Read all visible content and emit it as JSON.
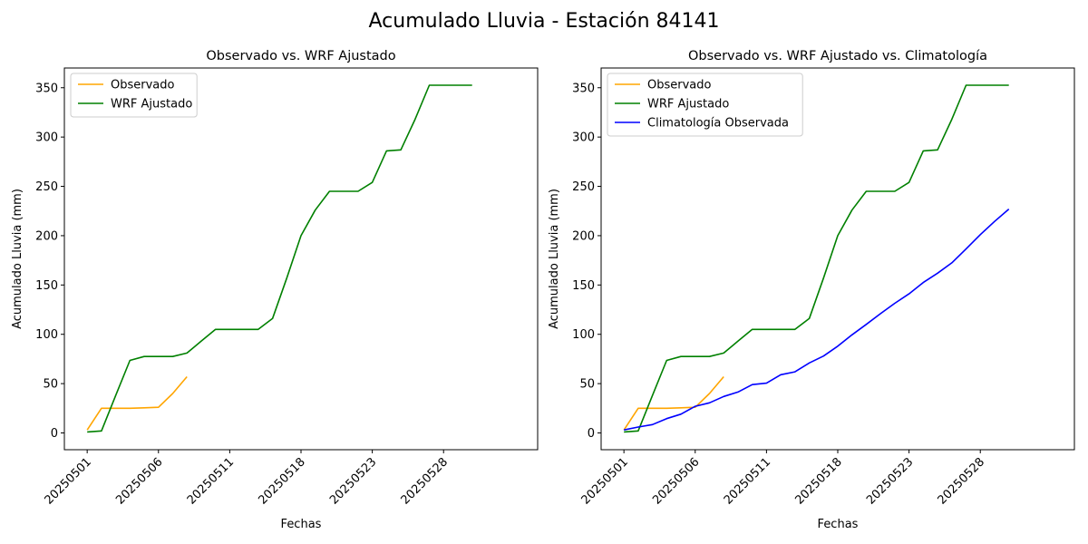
{
  "figure": {
    "suptitle": "Acumulado Lluvia - Estación 84141"
  },
  "colors": {
    "observado": "#ffa500",
    "wrf": "#008000",
    "clima": "#0000ff"
  },
  "chart_data": [
    {
      "type": "line",
      "title": "Observado vs. WRF Ajustado",
      "xlabel": "Fechas",
      "ylabel": "Acumulado Lluvia (mm)",
      "xlim": [
        -1.6,
        31.6
      ],
      "ylim": [
        -17,
        370
      ],
      "xticks": [
        {
          "x": 0,
          "label": "20250501"
        },
        {
          "x": 5,
          "label": "20250506"
        },
        {
          "x": 10,
          "label": "20250511"
        },
        {
          "x": 15,
          "label": "20250518"
        },
        {
          "x": 20,
          "label": "20250523"
        },
        {
          "x": 25,
          "label": "20250528"
        }
      ],
      "yticks": [
        0,
        50,
        100,
        150,
        200,
        250,
        300,
        350
      ],
      "legend": "upper left",
      "grid": false,
      "series": [
        {
          "name": "Observado",
          "color": "#ffa500",
          "x": [
            0,
            1,
            2,
            3,
            4,
            5,
            6,
            7
          ],
          "y": [
            3,
            25,
            25,
            25,
            25.5,
            26,
            40,
            57
          ]
        },
        {
          "name": "WRF Ajustado",
          "color": "#008000",
          "x": [
            0,
            1,
            2,
            3,
            4,
            5,
            6,
            7,
            8,
            9,
            10,
            11,
            12,
            13,
            14,
            15,
            16,
            17,
            18,
            19,
            20,
            21,
            22,
            23,
            24,
            25,
            26,
            27
          ],
          "y": [
            1,
            2,
            38,
            73.5,
            77.5,
            77.5,
            77.5,
            81,
            93,
            105,
            105,
            105,
            105,
            116,
            157,
            200,
            226,
            245,
            245,
            245,
            254,
            286,
            287,
            318,
            352.5,
            352.5,
            352.5,
            352.5
          ]
        }
      ]
    },
    {
      "type": "line",
      "title": "Observado vs. WRF Ajustado vs. Climatología",
      "xlabel": "Fechas",
      "ylabel": "Acumulado Lluvia (mm)",
      "xlim": [
        -1.6,
        31.6
      ],
      "ylim": [
        -17,
        370
      ],
      "xticks": [
        {
          "x": 0,
          "label": "20250501"
        },
        {
          "x": 5,
          "label": "20250506"
        },
        {
          "x": 10,
          "label": "20250511"
        },
        {
          "x": 15,
          "label": "20250518"
        },
        {
          "x": 20,
          "label": "20250523"
        },
        {
          "x": 25,
          "label": "20250528"
        }
      ],
      "yticks": [
        0,
        50,
        100,
        150,
        200,
        250,
        300,
        350
      ],
      "legend": "upper left",
      "grid": false,
      "series": [
        {
          "name": "Observado",
          "color": "#ffa500",
          "x": [
            0,
            1,
            2,
            3,
            4,
            5,
            6,
            7
          ],
          "y": [
            3,
            25,
            25,
            25,
            25.5,
            26,
            40,
            57
          ]
        },
        {
          "name": "WRF Ajustado",
          "color": "#008000",
          "x": [
            0,
            1,
            2,
            3,
            4,
            5,
            6,
            7,
            8,
            9,
            10,
            11,
            12,
            13,
            14,
            15,
            16,
            17,
            18,
            19,
            20,
            21,
            22,
            23,
            24,
            25,
            26,
            27
          ],
          "y": [
            1,
            2,
            38,
            73.5,
            77.5,
            77.5,
            77.5,
            81,
            93,
            105,
            105,
            105,
            105,
            116,
            157,
            200,
            226,
            245,
            245,
            245,
            254,
            286,
            287,
            318,
            352.5,
            352.5,
            352.5,
            352.5
          ]
        },
        {
          "name": "Climatología Observada",
          "color": "#0000ff",
          "x": [
            0,
            1,
            2,
            3,
            4,
            5,
            6,
            7,
            8,
            9,
            10,
            11,
            12,
            13,
            14,
            15,
            16,
            17,
            18,
            19,
            20,
            21,
            22,
            23,
            24,
            25,
            26,
            27
          ],
          "y": [
            3,
            6,
            8.5,
            14.5,
            19,
            27,
            30.5,
            37,
            41.5,
            49,
            50.5,
            59,
            62,
            71,
            78,
            88,
            99.5,
            110,
            121,
            131.5,
            141,
            152.5,
            162,
            172.5,
            186.5,
            201,
            214.5,
            227
          ]
        }
      ]
    }
  ]
}
